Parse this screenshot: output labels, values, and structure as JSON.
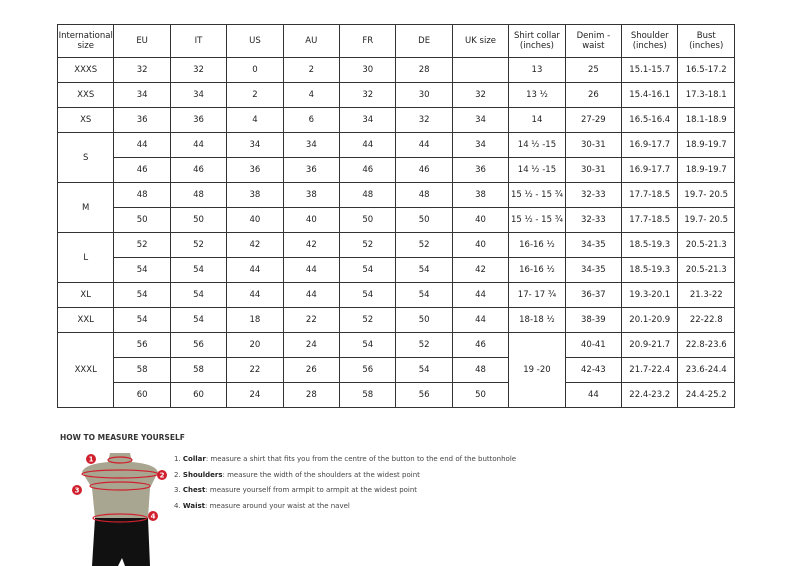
{
  "headers": [
    "International size",
    "EU",
    "IT",
    "US",
    "AU",
    "FR",
    "DE",
    "UK size",
    "Shirt collar (inches)",
    "Denim - waist",
    "Shoulder (inches)",
    "Bust (inches)"
  ],
  "groups": [
    {
      "size": "XXXS",
      "rows": [
        [
          "32",
          "32",
          "0",
          "2",
          "30",
          "28",
          "",
          "13",
          "25",
          "15.1-15.7",
          "16.5-17.2"
        ]
      ]
    },
    {
      "size": "XXS",
      "rows": [
        [
          "34",
          "34",
          "2",
          "4",
          "32",
          "30",
          "32",
          "13 ½",
          "26",
          "15.4-16.1",
          "17.3-18.1"
        ]
      ]
    },
    {
      "size": "XS",
      "rows": [
        [
          "36",
          "36",
          "4",
          "6",
          "34",
          "32",
          "34",
          "14",
          "27-29",
          "16.5-16.4",
          "18.1-18.9"
        ]
      ]
    },
    {
      "size": "S",
      "rows": [
        [
          "44",
          "44",
          "34",
          "34",
          "44",
          "44",
          "34",
          "14 ½ -15",
          "30-31",
          "16.9-17.7",
          "18.9-19.7"
        ],
        [
          "46",
          "46",
          "36",
          "36",
          "46",
          "46",
          "36",
          "14 ½ -15",
          "30-31",
          "16.9-17.7",
          "18.9-19.7"
        ]
      ]
    },
    {
      "size": "M",
      "rows": [
        [
          "48",
          "48",
          "38",
          "38",
          "48",
          "48",
          "38",
          "15 ½ - 15 ¾",
          "32-33",
          "17.7-18.5",
          "19.7- 20.5"
        ],
        [
          "50",
          "50",
          "40",
          "40",
          "50",
          "50",
          "40",
          "15 ½ - 15 ¾",
          "32-33",
          "17.7-18.5",
          "19.7- 20.5"
        ]
      ]
    },
    {
      "size": "L",
      "rows": [
        [
          "52",
          "52",
          "42",
          "42",
          "52",
          "52",
          "40",
          "16-16 ½",
          "34-35",
          "18.5-19.3",
          "20.5-21.3"
        ],
        [
          "54",
          "54",
          "44",
          "44",
          "54",
          "54",
          "42",
          "16-16 ½",
          "34-35",
          "18.5-19.3",
          "20.5-21.3"
        ]
      ]
    },
    {
      "size": "XL",
      "rows": [
        [
          "54",
          "54",
          "44",
          "44",
          "54",
          "54",
          "44",
          "17- 17 ¾",
          "36-37",
          "19.3-20.1",
          "21.3-22"
        ]
      ]
    },
    {
      "size": "XXL",
      "rows": [
        [
          "54",
          "54",
          "18",
          "22",
          "52",
          "50",
          "44",
          "18-18 ½",
          "38-39",
          "20.1-20.9",
          "22-22.8"
        ]
      ]
    },
    {
      "size": "XXXL",
      "collar_merged": "19 -20",
      "rows": [
        [
          "56",
          "56",
          "20",
          "24",
          "54",
          "52",
          "46",
          "40-41",
          "20.9-21.7",
          "22.8-23.6"
        ],
        [
          "58",
          "58",
          "22",
          "26",
          "56",
          "54",
          "48",
          "42-43",
          "21.7-22.4",
          "23.6-24.4"
        ],
        [
          "60",
          "60",
          "24",
          "28",
          "58",
          "56",
          "50",
          "44",
          "22.4-23.2",
          "24.4-25.2"
        ]
      ]
    }
  ],
  "guide": {
    "title": "HOW TO MEASURE YOURSELF",
    "markers": [
      "1",
      "2",
      "3",
      "4"
    ],
    "steps": [
      {
        "num": "1.",
        "term": "Collar",
        "text": ": measure a shirt that fits you from the centre of the button to the end of the buttonhole"
      },
      {
        "num": "2.",
        "term": "Shoulders",
        "text": ": measure the width of the shoulders at the widest point"
      },
      {
        "num": "3.",
        "term": "Chest",
        "text": ": measure yourself from armpit to armpit at the widest point"
      },
      {
        "num": "4.",
        "term": "Waist",
        "text": ": measure around your waist at the navel"
      }
    ],
    "colors": {
      "marker": "#d0202e",
      "body": "#a8a690",
      "pants": "#111111"
    }
  }
}
